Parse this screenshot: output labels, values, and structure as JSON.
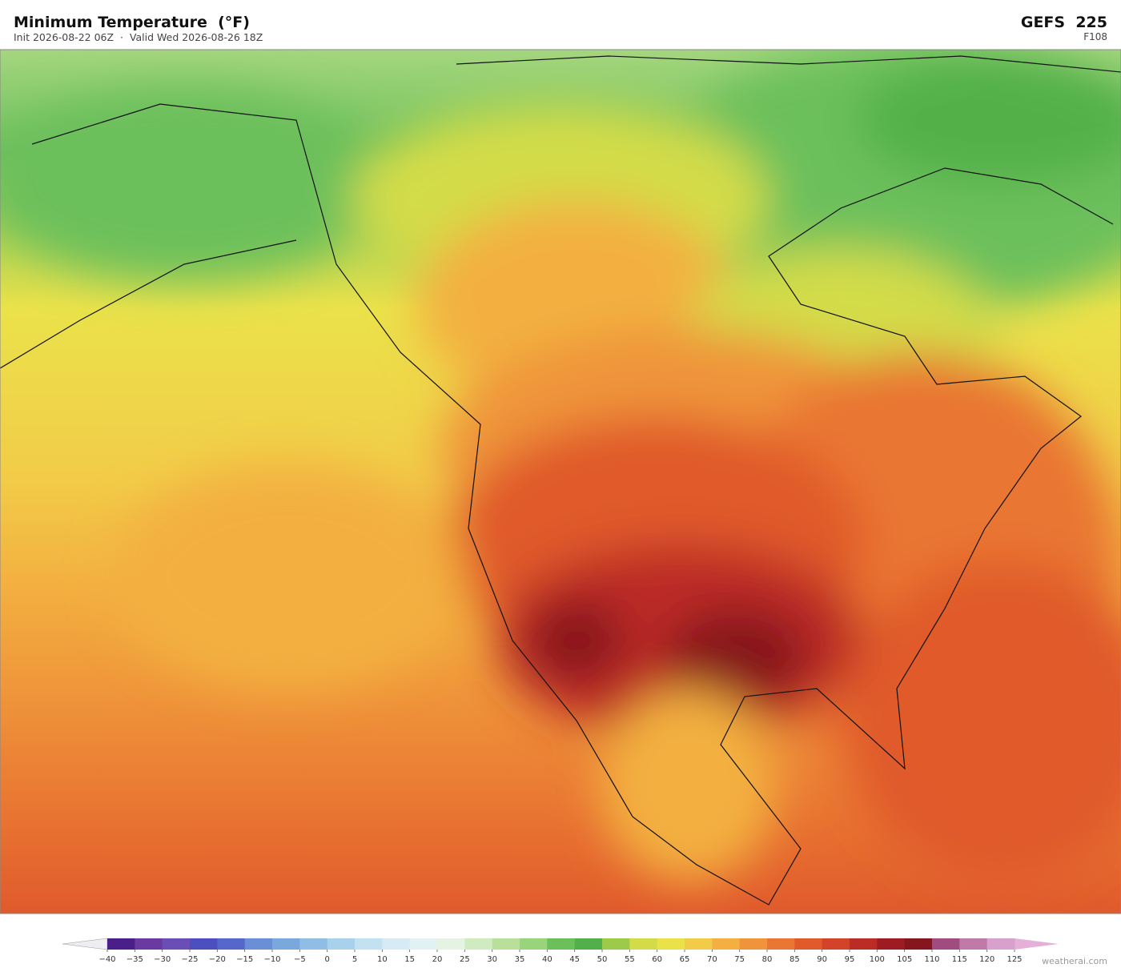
{
  "header": {
    "title": "Minimum Temperature  (°F)",
    "subtitle": "Init 2026-08-22 06Z  ·  Valid Wed 2026-08-26 18Z",
    "model": "GEFS  225",
    "forecast_hour": "F108"
  },
  "colorbar": {
    "ticks": [
      {
        "value": -40,
        "label": "−40"
      },
      {
        "value": -35,
        "label": "−35"
      },
      {
        "value": -30,
        "label": "−30"
      },
      {
        "value": -25,
        "label": "−25"
      },
      {
        "value": -20,
        "label": "−20"
      },
      {
        "value": -15,
        "label": "−15"
      },
      {
        "value": -10,
        "label": "−10"
      },
      {
        "value": -5,
        "label": "−5"
      },
      0,
      5,
      10,
      15,
      20,
      25,
      30,
      35,
      40,
      45,
      50,
      55,
      60,
      65,
      70,
      75,
      80,
      85,
      90,
      95,
      100,
      105,
      110,
      115,
      120,
      125
    ],
    "colors": [
      "#4b1f8a",
      "#6a3aa0",
      "#6b4eb5",
      "#4b4fc0",
      "#5468cc",
      "#6a8fd6",
      "#7aa7dc",
      "#8fbde3",
      "#a8d2ec",
      "#c2e1f1",
      "#d6ebf3",
      "#e2f1f3",
      "#e5f4e2",
      "#d0ebc0",
      "#b8e09a",
      "#98d47a",
      "#6cc05c",
      "#52b04a",
      "#9ccb4a",
      "#d3dc48",
      "#ebe24a",
      "#f2cb48",
      "#f3b040",
      "#ef943a",
      "#e97632",
      "#e05a2c",
      "#d3432a",
      "#bb2c26",
      "#9c1c22",
      "#86161e",
      "#a04c80",
      "#c07aaa",
      "#d8a0cc"
    ]
  },
  "footer": {
    "credit": "weatherai.com"
  }
}
